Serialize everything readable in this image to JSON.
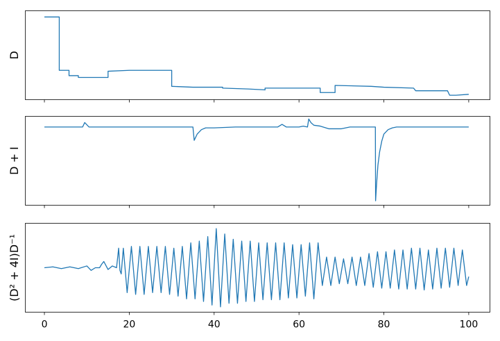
{
  "chart_data": [
    {
      "type": "line",
      "ylabel": "D",
      "xlim": [
        -4.5,
        105
      ],
      "ylim": [
        0.0,
        1.0
      ],
      "color": "#1f77b4",
      "series": [
        {
          "x": [
            0.0,
            3.5,
            3.5,
            5.8,
            5.8,
            8.0,
            8.0,
            10.0,
            15.0,
            15.0,
            20.0,
            30.0,
            30.0,
            35.0,
            40.0,
            42.0,
            42.0,
            48.0,
            52.0,
            52.0,
            60.0,
            65.0,
            65.0,
            66.0,
            67.0,
            68.0,
            68.5,
            68.5,
            77.0,
            80.0,
            87.0,
            87.5,
            90.0,
            95.0,
            95.5,
            97.0,
            100.0
          ],
          "y": [
            0.93,
            0.93,
            0.33,
            0.33,
            0.27,
            0.27,
            0.25,
            0.25,
            0.25,
            0.32,
            0.33,
            0.33,
            0.15,
            0.14,
            0.14,
            0.14,
            0.13,
            0.12,
            0.11,
            0.13,
            0.13,
            0.13,
            0.08,
            0.08,
            0.08,
            0.08,
            0.08,
            0.16,
            0.15,
            0.14,
            0.13,
            0.1,
            0.1,
            0.1,
            0.05,
            0.05,
            0.06
          ]
        }
      ]
    },
    {
      "type": "line",
      "ylabel": "D + I",
      "xlim": [
        -4.5,
        105
      ],
      "ylim": [
        0.0,
        1.0
      ],
      "color": "#1f77b4",
      "series": [
        {
          "x": [
            0.0,
            9.0,
            9.5,
            10.5,
            11.0,
            20.0,
            35.0,
            35.3,
            36.0,
            37.0,
            38.0,
            40.0,
            45.0,
            55.0,
            56.0,
            57.0,
            60.0,
            61.0,
            62.0,
            62.3,
            62.8,
            63.5,
            65.0,
            67.0,
            70.0,
            72.0,
            78.0,
            78.05,
            78.3,
            78.6,
            79.0,
            79.5,
            80.0,
            81.0,
            82.0,
            83.0,
            85.0,
            90.0,
            100.0
          ],
          "y": [
            0.88,
            0.88,
            0.93,
            0.88,
            0.88,
            0.88,
            0.88,
            0.73,
            0.8,
            0.85,
            0.87,
            0.87,
            0.88,
            0.88,
            0.91,
            0.88,
            0.88,
            0.89,
            0.88,
            0.97,
            0.93,
            0.9,
            0.89,
            0.86,
            0.86,
            0.88,
            0.88,
            0.05,
            0.25,
            0.45,
            0.6,
            0.72,
            0.8,
            0.85,
            0.87,
            0.88,
            0.88,
            0.88,
            0.88
          ]
        }
      ]
    },
    {
      "type": "line",
      "ylabel": "(D² + 4I)D⁻¹",
      "xlim": [
        -4.5,
        105
      ],
      "ylim": [
        0.0,
        1.0
      ],
      "color": "#1f77b4",
      "series": [
        {
          "x": [
            0.0,
            2.0,
            4.0,
            6.0,
            8.0,
            10.0,
            11.0,
            12.0,
            13.0,
            13.5,
            14.0,
            15.0,
            16.0,
            17.0,
            17.5,
            17.8,
            18.1,
            18.6,
            19.5,
            20.5,
            21.5,
            22.5,
            23.5,
            24.5,
            25.5,
            26.5,
            27.5,
            28.5,
            29.5,
            30.5,
            31.5,
            32.5,
            33.5,
            34.5,
            35.5,
            36.5,
            37.5,
            38.5,
            39.5,
            40.5,
            41.5,
            42.5,
            43.5,
            44.5,
            45.5,
            46.5,
            47.5,
            48.5,
            49.5,
            50.5,
            51.5,
            52.5,
            53.5,
            54.5,
            55.5,
            56.5,
            57.5,
            58.5,
            59.5,
            60.5,
            61.5,
            62.5,
            63.5,
            64.5,
            65.5,
            66.5,
            67.5,
            68.5,
            69.5,
            70.5,
            71.5,
            72.5,
            73.5,
            74.5,
            75.5,
            76.5,
            77.5,
            78.5,
            79.5,
            80.5,
            81.5,
            82.5,
            83.5,
            84.5,
            85.5,
            86.5,
            87.5,
            88.5,
            89.5,
            90.5,
            91.5,
            92.5,
            93.5,
            94.5,
            95.5,
            96.5,
            97.5,
            98.5,
            99.5,
            100.0
          ],
          "y": [
            0.5,
            0.51,
            0.49,
            0.51,
            0.49,
            0.52,
            0.47,
            0.5,
            0.5,
            0.54,
            0.57,
            0.48,
            0.52,
            0.5,
            0.72,
            0.47,
            0.43,
            0.72,
            0.22,
            0.74,
            0.2,
            0.74,
            0.2,
            0.74,
            0.22,
            0.74,
            0.22,
            0.74,
            0.2,
            0.72,
            0.18,
            0.74,
            0.15,
            0.78,
            0.15,
            0.8,
            0.12,
            0.85,
            0.08,
            0.94,
            0.06,
            0.88,
            0.1,
            0.82,
            0.1,
            0.8,
            0.12,
            0.8,
            0.12,
            0.78,
            0.14,
            0.78,
            0.14,
            0.78,
            0.14,
            0.78,
            0.16,
            0.76,
            0.16,
            0.76,
            0.18,
            0.78,
            0.15,
            0.78,
            0.3,
            0.62,
            0.3,
            0.62,
            0.32,
            0.6,
            0.32,
            0.62,
            0.3,
            0.62,
            0.3,
            0.66,
            0.28,
            0.68,
            0.27,
            0.68,
            0.27,
            0.7,
            0.26,
            0.7,
            0.26,
            0.72,
            0.26,
            0.72,
            0.25,
            0.7,
            0.26,
            0.72,
            0.27,
            0.72,
            0.28,
            0.72,
            0.3,
            0.7,
            0.3,
            0.4
          ]
        }
      ]
    }
  ],
  "x_ticks": [
    0,
    20,
    40,
    60,
    80,
    100
  ],
  "x_ticklabels": [
    "0",
    "20",
    "40",
    "60",
    "80",
    "100"
  ]
}
